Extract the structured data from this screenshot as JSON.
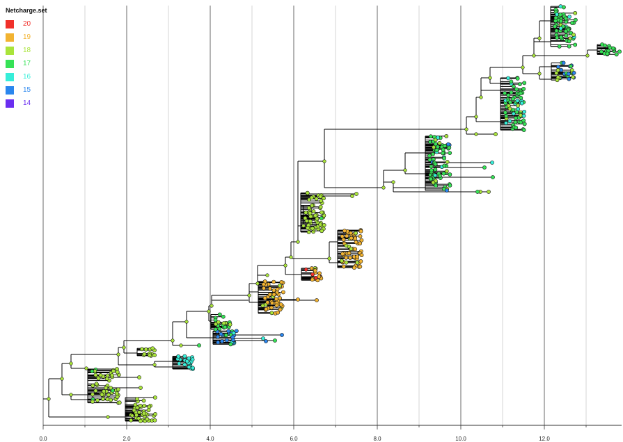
{
  "chart_data": {
    "type": "phylogenetic-tree",
    "legend": {
      "title": "Netcharge.set",
      "placement": "top-left",
      "entries": [
        {
          "label": "20",
          "color": "#f0302a"
        },
        {
          "label": "19",
          "color": "#f2b331"
        },
        {
          "label": "18",
          "color": "#a9e43a"
        },
        {
          "label": "17",
          "color": "#36e256"
        },
        {
          "label": "16",
          "color": "#36eed9"
        },
        {
          "label": "15",
          "color": "#2a86ee"
        },
        {
          "label": "14",
          "color": "#6a2ef0"
        }
      ]
    },
    "x_axis": {
      "range": [
        0,
        13.9
      ],
      "ticks": [
        "0.0",
        "2.0",
        "4.0",
        "6.0",
        "8.0",
        "10.0",
        "12.0"
      ],
      "tick_values": [
        0,
        2,
        4,
        6,
        8,
        10,
        12
      ],
      "grid": true
    },
    "clades": [
      {
        "netcharge": "18",
        "x": 2.4
      },
      {
        "netcharge": "18",
        "x": 1.5
      },
      {
        "netcharge": "18",
        "x": 2.5
      },
      {
        "netcharge": "16",
        "x": 3.4
      },
      {
        "netcharge": "15",
        "x": 4.4
      },
      {
        "netcharge": "17",
        "x": 4.3
      },
      {
        "netcharge": "19",
        "x": 5.5
      },
      {
        "netcharge": "20",
        "x": 6.5
      },
      {
        "netcharge": "19",
        "x": 7.4
      },
      {
        "netcharge": "18",
        "x": 6.5
      },
      {
        "netcharge": "17",
        "x": 9.5
      },
      {
        "netcharge": "17",
        "x": 11.3
      },
      {
        "netcharge": "18",
        "x": 12.5
      },
      {
        "netcharge": "15",
        "x": 12.5
      },
      {
        "netcharge": "17",
        "x": 13.6
      }
    ]
  }
}
